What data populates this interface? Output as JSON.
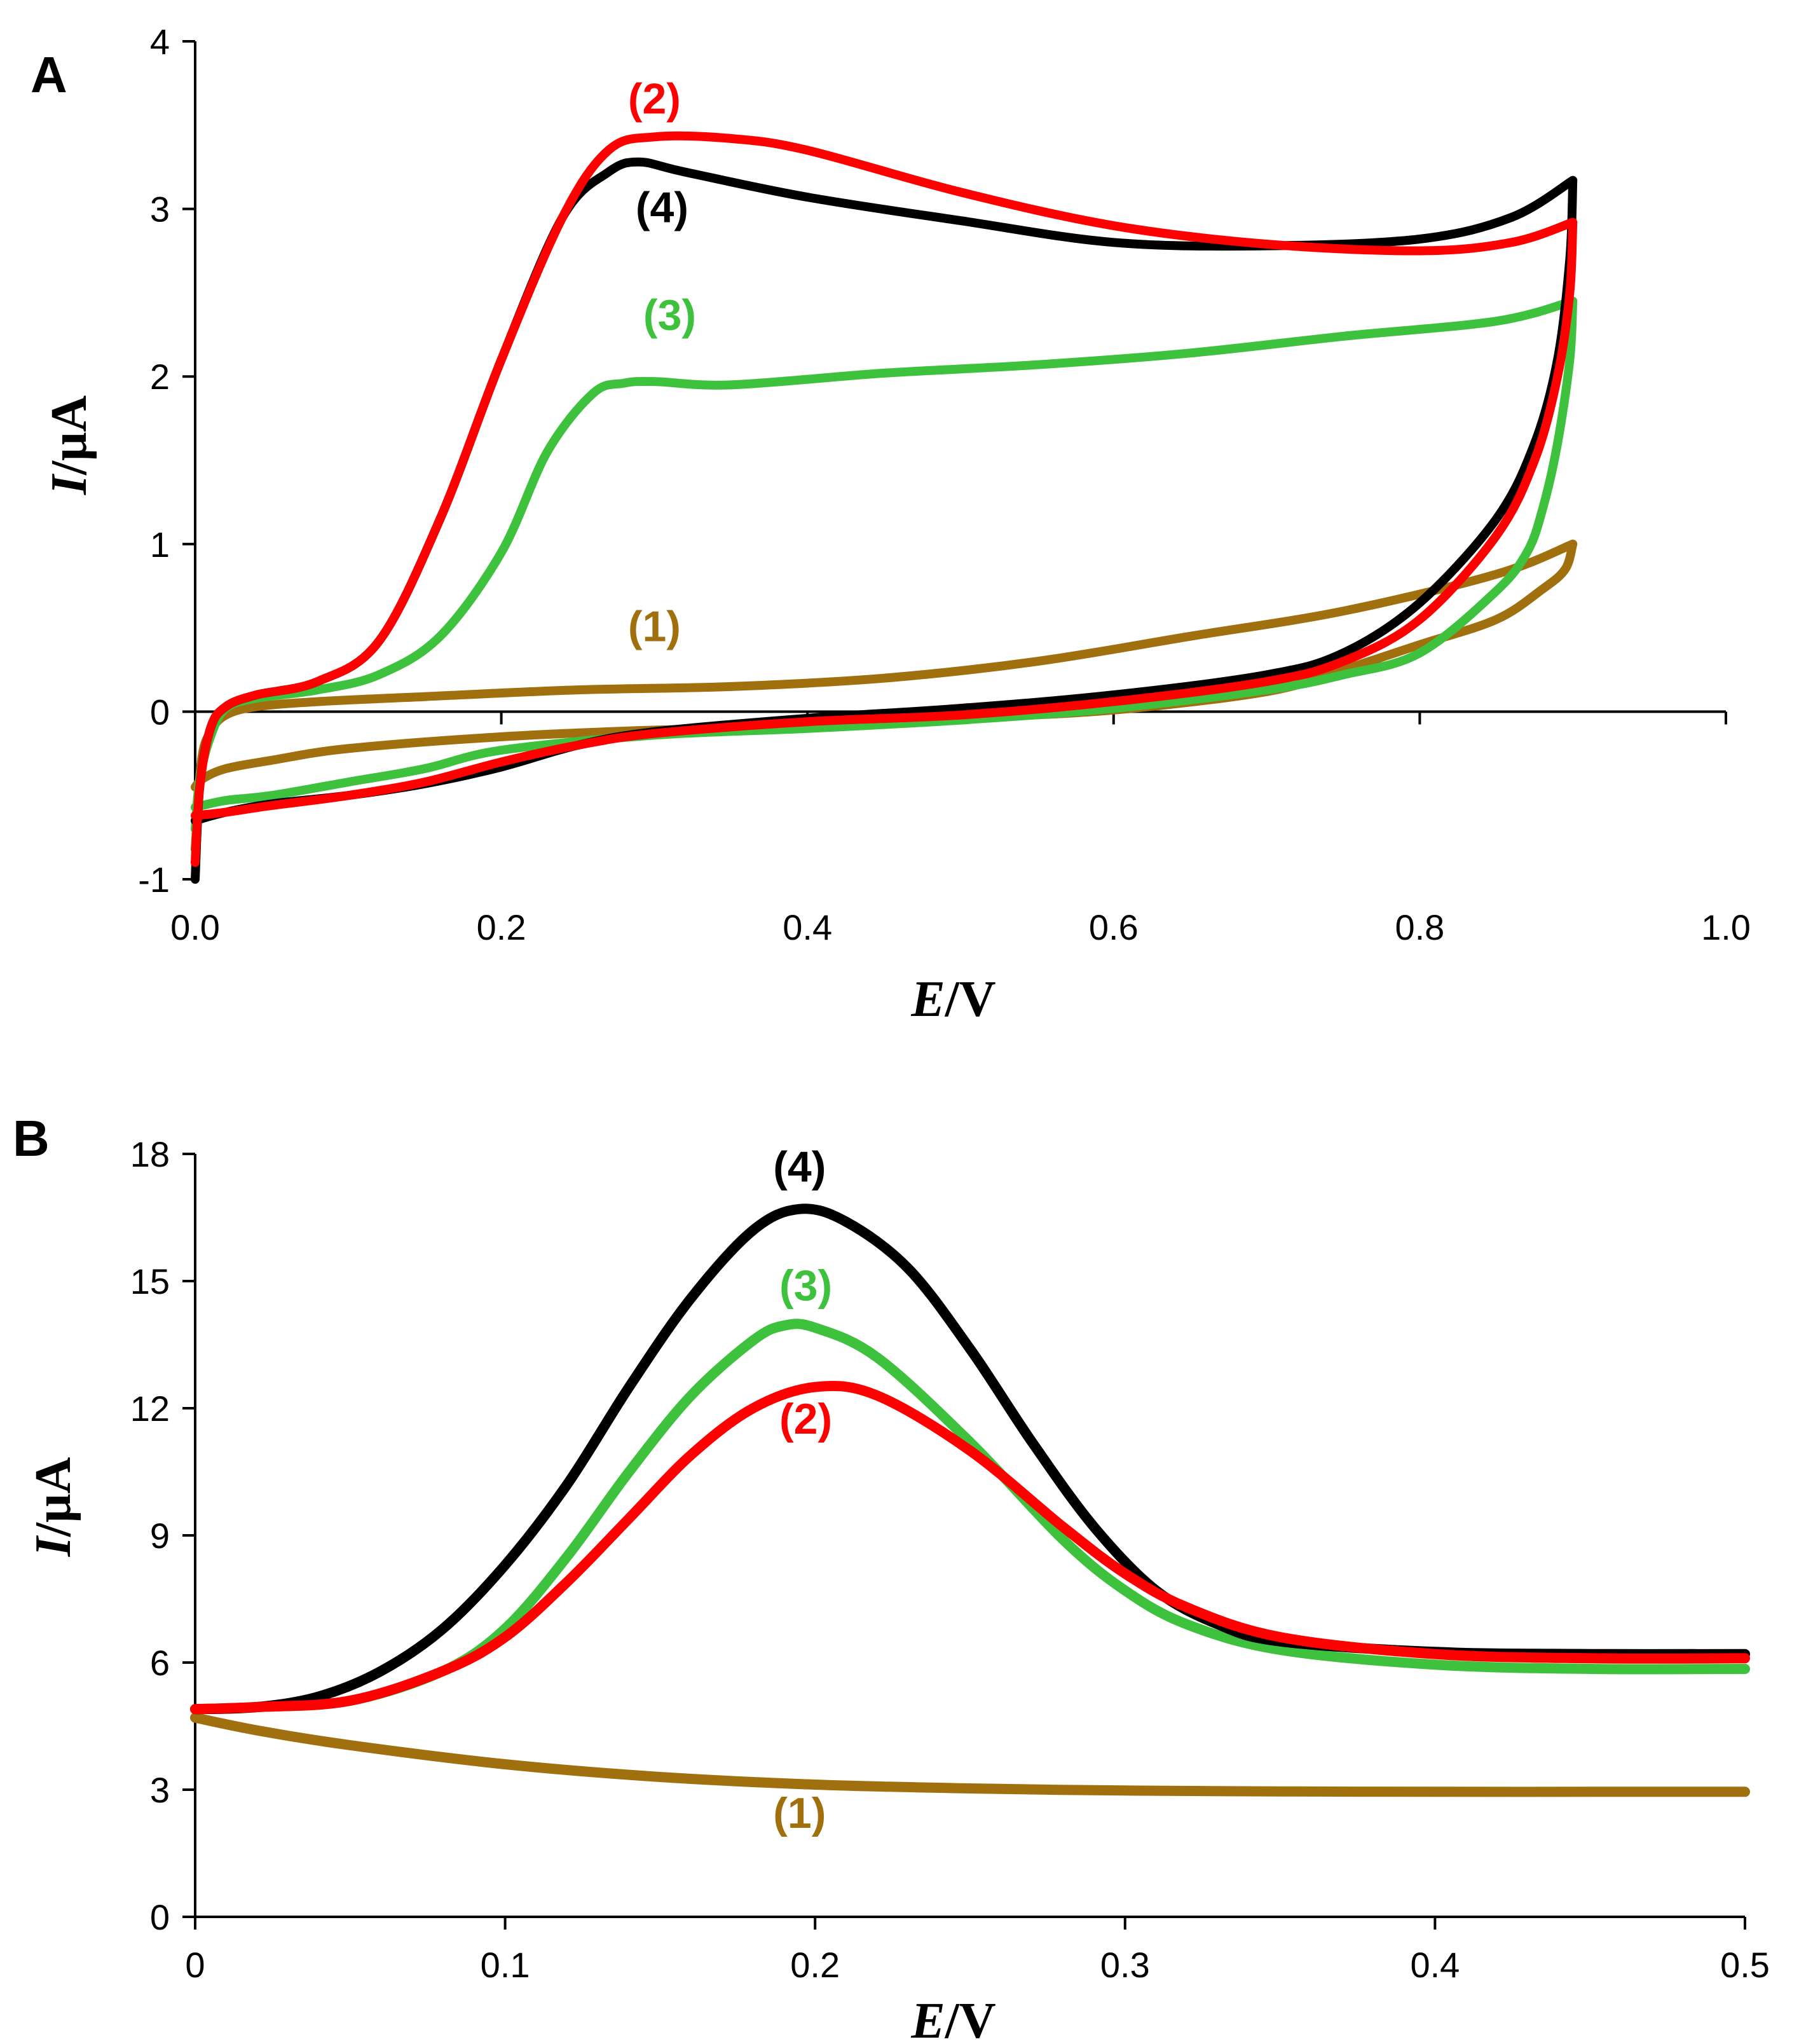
{
  "chart_data": [
    {
      "panel": "A",
      "type": "line",
      "plot": "cyclic-voltammogram",
      "xlabel": {
        "italic": "E",
        "rest": "/V"
      },
      "ylabel": {
        "italic": "I",
        "rest": "/μA"
      },
      "xlim": [
        0,
        1.0
      ],
      "ylim": [
        -1,
        4
      ],
      "xticks": [
        0.0,
        0.2,
        0.4,
        0.6,
        0.8,
        1.0
      ],
      "xtick_labels": [
        "0.0",
        "0.2",
        "0.4",
        "0.6",
        "0.8",
        "1.0"
      ],
      "yticks": [
        -1,
        0,
        1,
        2,
        3,
        4
      ],
      "ytick_labels": [
        "-1",
        "0",
        "1",
        "2",
        "3",
        "4"
      ],
      "series": [
        {
          "name": "(1)",
          "color": "#A0700E",
          "label": {
            "x": 0.3,
            "y": 0.42
          },
          "forward": [
            [
              0.0,
              -0.82
            ],
            [
              0.004,
              -0.3
            ],
            [
              0.01,
              -0.12
            ],
            [
              0.02,
              -0.02
            ],
            [
              0.04,
              0.03
            ],
            [
              0.08,
              0.06
            ],
            [
              0.15,
              0.09
            ],
            [
              0.25,
              0.13
            ],
            [
              0.35,
              0.15
            ],
            [
              0.45,
              0.2
            ],
            [
              0.55,
              0.3
            ],
            [
              0.65,
              0.45
            ],
            [
              0.75,
              0.6
            ],
            [
              0.85,
              0.82
            ],
            [
              0.9,
              1.0
            ]
          ],
          "reverse": [
            [
              0.9,
              1.0
            ],
            [
              0.895,
              0.85
            ],
            [
              0.88,
              0.73
            ],
            [
              0.85,
              0.55
            ],
            [
              0.8,
              0.4
            ],
            [
              0.75,
              0.25
            ],
            [
              0.7,
              0.12
            ],
            [
              0.6,
              0.01
            ],
            [
              0.5,
              -0.04
            ],
            [
              0.4,
              -0.09
            ],
            [
              0.3,
              -0.11
            ],
            [
              0.2,
              -0.15
            ],
            [
              0.1,
              -0.22
            ],
            [
              0.05,
              -0.29
            ],
            [
              0.02,
              -0.34
            ],
            [
              0.005,
              -0.4
            ],
            [
              0.0,
              -0.45
            ]
          ]
        },
        {
          "name": "(3)",
          "color": "#3EC23E",
          "label": {
            "x": 0.31,
            "y": 2.28
          },
          "forward": [
            [
              0.0,
              -0.7
            ],
            [
              0.003,
              -0.4
            ],
            [
              0.01,
              -0.15
            ],
            [
              0.02,
              0.02
            ],
            [
              0.04,
              0.08
            ],
            [
              0.08,
              0.13
            ],
            [
              0.12,
              0.22
            ],
            [
              0.16,
              0.45
            ],
            [
              0.2,
              0.95
            ],
            [
              0.23,
              1.55
            ],
            [
              0.26,
              1.9
            ],
            [
              0.28,
              1.96
            ],
            [
              0.3,
              1.97
            ],
            [
              0.35,
              1.95
            ],
            [
              0.45,
              2.02
            ],
            [
              0.55,
              2.07
            ],
            [
              0.65,
              2.14
            ],
            [
              0.75,
              2.24
            ],
            [
              0.85,
              2.33
            ],
            [
              0.9,
              2.45
            ]
          ],
          "reverse": [
            [
              0.9,
              2.45
            ],
            [
              0.898,
              2.1
            ],
            [
              0.89,
              1.6
            ],
            [
              0.88,
              1.2
            ],
            [
              0.87,
              0.95
            ],
            [
              0.85,
              0.72
            ],
            [
              0.8,
              0.35
            ],
            [
              0.75,
              0.22
            ],
            [
              0.7,
              0.13
            ],
            [
              0.6,
              0.02
            ],
            [
              0.5,
              -0.05
            ],
            [
              0.4,
              -0.1
            ],
            [
              0.3,
              -0.14
            ],
            [
              0.2,
              -0.23
            ],
            [
              0.15,
              -0.34
            ],
            [
              0.1,
              -0.42
            ],
            [
              0.05,
              -0.5
            ],
            [
              0.02,
              -0.53
            ],
            [
              0.0,
              -0.57
            ]
          ]
        },
        {
          "name": "(4)",
          "color": "#000000",
          "label": {
            "x": 0.305,
            "y": 2.92
          },
          "forward": [
            [
              0.0,
              -1.0
            ],
            [
              0.003,
              -0.45
            ],
            [
              0.01,
              -0.1
            ],
            [
              0.02,
              0.03
            ],
            [
              0.04,
              0.1
            ],
            [
              0.08,
              0.18
            ],
            [
              0.12,
              0.42
            ],
            [
              0.16,
              1.15
            ],
            [
              0.2,
              2.1
            ],
            [
              0.24,
              2.95
            ],
            [
              0.27,
              3.22
            ],
            [
              0.29,
              3.28
            ],
            [
              0.32,
              3.22
            ],
            [
              0.4,
              3.07
            ],
            [
              0.5,
              2.93
            ],
            [
              0.6,
              2.8
            ],
            [
              0.7,
              2.78
            ],
            [
              0.8,
              2.82
            ],
            [
              0.86,
              2.95
            ],
            [
              0.9,
              3.17
            ]
          ],
          "reverse": [
            [
              0.9,
              3.17
            ],
            [
              0.898,
              2.7
            ],
            [
              0.89,
              2.1
            ],
            [
              0.875,
              1.6
            ],
            [
              0.85,
              1.15
            ],
            [
              0.8,
              0.65
            ],
            [
              0.75,
              0.35
            ],
            [
              0.7,
              0.22
            ],
            [
              0.6,
              0.1
            ],
            [
              0.5,
              0.02
            ],
            [
              0.4,
              -0.04
            ],
            [
              0.3,
              -0.12
            ],
            [
              0.25,
              -0.2
            ],
            [
              0.2,
              -0.33
            ],
            [
              0.15,
              -0.43
            ],
            [
              0.1,
              -0.5
            ],
            [
              0.05,
              -0.55
            ],
            [
              0.02,
              -0.6
            ],
            [
              0.0,
              -0.65
            ]
          ]
        },
        {
          "name": "(2)",
          "color": "#FF0000",
          "label": {
            "x": 0.3,
            "y": 3.57
          },
          "forward": [
            [
              0.0,
              -0.9
            ],
            [
              0.003,
              -0.45
            ],
            [
              0.01,
              -0.1
            ],
            [
              0.02,
              0.03
            ],
            [
              0.04,
              0.1
            ],
            [
              0.08,
              0.18
            ],
            [
              0.12,
              0.42
            ],
            [
              0.16,
              1.15
            ],
            [
              0.2,
              2.1
            ],
            [
              0.24,
              2.95
            ],
            [
              0.27,
              3.35
            ],
            [
              0.3,
              3.43
            ],
            [
              0.35,
              3.42
            ],
            [
              0.4,
              3.35
            ],
            [
              0.5,
              3.1
            ],
            [
              0.6,
              2.9
            ],
            [
              0.7,
              2.79
            ],
            [
              0.8,
              2.75
            ],
            [
              0.86,
              2.8
            ],
            [
              0.9,
              2.92
            ]
          ],
          "reverse": [
            [
              0.9,
              2.92
            ],
            [
              0.898,
              2.5
            ],
            [
              0.89,
              2.0
            ],
            [
              0.875,
              1.5
            ],
            [
              0.85,
              1.05
            ],
            [
              0.8,
              0.55
            ],
            [
              0.75,
              0.3
            ],
            [
              0.7,
              0.18
            ],
            [
              0.6,
              0.06
            ],
            [
              0.5,
              -0.02
            ],
            [
              0.4,
              -0.06
            ],
            [
              0.3,
              -0.13
            ],
            [
              0.25,
              -0.2
            ],
            [
              0.2,
              -0.3
            ],
            [
              0.15,
              -0.42
            ],
            [
              0.1,
              -0.5
            ],
            [
              0.05,
              -0.56
            ],
            [
              0.02,
              -0.6
            ],
            [
              0.0,
              -0.62
            ]
          ]
        }
      ]
    },
    {
      "panel": "B",
      "type": "line",
      "plot": "differential-pulse-voltammogram",
      "xlabel": {
        "italic": "E",
        "rest": "/V"
      },
      "ylabel": {
        "italic": "I",
        "rest": "/μA"
      },
      "xlim": [
        0,
        0.5
      ],
      "ylim": [
        0,
        18
      ],
      "xticks": [
        0,
        0.1,
        0.2,
        0.3,
        0.4,
        0.5
      ],
      "xtick_labels": [
        "0",
        "0.1",
        "0.2",
        "0.3",
        "0.4",
        "0.5"
      ],
      "yticks": [
        0,
        3,
        6,
        9,
        12,
        15,
        18
      ],
      "ytick_labels": [
        "0",
        "3",
        "6",
        "9",
        "12",
        "15",
        "18"
      ],
      "series": [
        {
          "name": "(1)",
          "color": "#A0700E",
          "label": {
            "x": 0.195,
            "y": 2.1
          },
          "values": [
            [
              0.0,
              4.7
            ],
            [
              0.02,
              4.4
            ],
            [
              0.05,
              4.05
            ],
            [
              0.1,
              3.6
            ],
            [
              0.15,
              3.3
            ],
            [
              0.2,
              3.12
            ],
            [
              0.25,
              3.03
            ],
            [
              0.3,
              2.98
            ],
            [
              0.35,
              2.96
            ],
            [
              0.4,
              2.95
            ],
            [
              0.45,
              2.95
            ],
            [
              0.5,
              2.95
            ]
          ]
        },
        {
          "name": "(3)",
          "color": "#3EC23E",
          "label": {
            "x": 0.197,
            "y": 14.55
          },
          "values": [
            [
              0.0,
              4.9
            ],
            [
              0.02,
              4.95
            ],
            [
              0.05,
              5.1
            ],
            [
              0.08,
              5.8
            ],
            [
              0.1,
              6.8
            ],
            [
              0.12,
              8.5
            ],
            [
              0.14,
              10.5
            ],
            [
              0.16,
              12.3
            ],
            [
              0.18,
              13.6
            ],
            [
              0.19,
              13.95
            ],
            [
              0.2,
              13.9
            ],
            [
              0.22,
              13.2
            ],
            [
              0.25,
              11.2
            ],
            [
              0.28,
              8.9
            ],
            [
              0.3,
              7.7
            ],
            [
              0.32,
              6.9
            ],
            [
              0.35,
              6.3
            ],
            [
              0.4,
              5.95
            ],
            [
              0.45,
              5.85
            ],
            [
              0.5,
              5.85
            ]
          ]
        },
        {
          "name": "(4)",
          "color": "#000000",
          "label": {
            "x": 0.195,
            "y": 17.35
          },
          "values": [
            [
              0.0,
              4.9
            ],
            [
              0.02,
              4.95
            ],
            [
              0.04,
              5.2
            ],
            [
              0.06,
              5.8
            ],
            [
              0.08,
              6.8
            ],
            [
              0.1,
              8.3
            ],
            [
              0.12,
              10.2
            ],
            [
              0.14,
              12.5
            ],
            [
              0.16,
              14.6
            ],
            [
              0.18,
              16.2
            ],
            [
              0.195,
              16.7
            ],
            [
              0.21,
              16.4
            ],
            [
              0.23,
              15.3
            ],
            [
              0.25,
              13.4
            ],
            [
              0.27,
              11.2
            ],
            [
              0.29,
              9.2
            ],
            [
              0.31,
              7.7
            ],
            [
              0.33,
              6.9
            ],
            [
              0.35,
              6.5
            ],
            [
              0.4,
              6.25
            ],
            [
              0.45,
              6.2
            ],
            [
              0.5,
              6.2
            ]
          ]
        },
        {
          "name": "(2)",
          "color": "#FF0000",
          "label": {
            "x": 0.197,
            "y": 11.4
          },
          "values": [
            [
              0.0,
              4.9
            ],
            [
              0.02,
              4.95
            ],
            [
              0.05,
              5.1
            ],
            [
              0.08,
              5.8
            ],
            [
              0.1,
              6.6
            ],
            [
              0.12,
              7.9
            ],
            [
              0.14,
              9.4
            ],
            [
              0.16,
              10.9
            ],
            [
              0.18,
              12.0
            ],
            [
              0.2,
              12.5
            ],
            [
              0.22,
              12.3
            ],
            [
              0.25,
              11.0
            ],
            [
              0.28,
              9.2
            ],
            [
              0.3,
              8.1
            ],
            [
              0.32,
              7.3
            ],
            [
              0.35,
              6.6
            ],
            [
              0.4,
              6.2
            ],
            [
              0.45,
              6.1
            ],
            [
              0.5,
              6.1
            ]
          ]
        }
      ]
    }
  ]
}
